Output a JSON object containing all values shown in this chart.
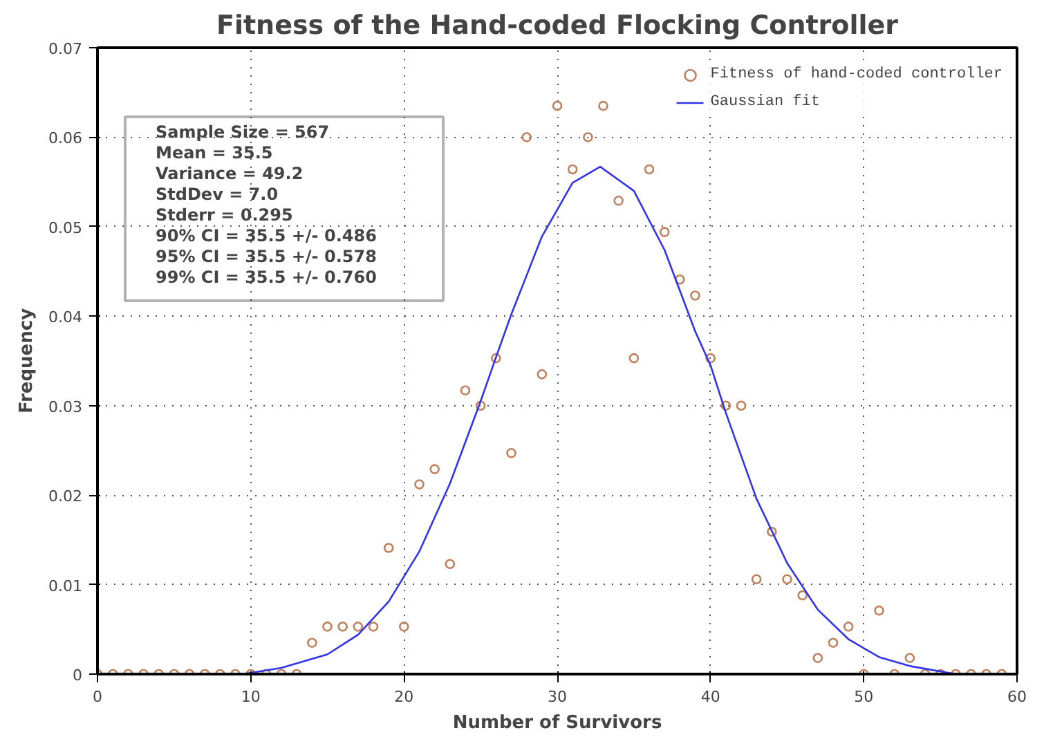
{
  "chart_data": {
    "type": "scatter",
    "title": "Fitness of the Hand-coded Flocking Controller",
    "xlabel": "Number of Survivors",
    "ylabel": "Frequency",
    "xlim": [
      0,
      60
    ],
    "xticks": [
      0,
      10,
      20,
      30,
      40,
      50,
      60
    ],
    "ylim": [
      0,
      0.07
    ],
    "yticks": [
      0,
      0.01,
      0.02,
      0.03,
      0.04,
      0.05,
      0.06,
      0.07
    ],
    "grid": true,
    "legend": "top right",
    "annotations": [
      "Sample Size = 567",
      "Mean = 35.5",
      "Variance = 49.2",
      "StdDev = 7.0",
      "Stderr = 0.295",
      "90% CI = 35.5 +/- 0.486",
      "95% CI = 35.5 +/- 0.578",
      "99% CI = 35.5 +/- 0.760"
    ],
    "series": [
      {
        "name": "Fitness of hand-coded controller",
        "marker": "circle",
        "color": "#c0825e",
        "x": [
          0,
          1,
          2,
          3,
          4,
          5,
          6,
          7,
          8,
          9,
          10,
          11,
          12,
          13,
          14,
          15,
          16,
          17,
          18,
          19,
          20,
          21,
          22,
          23,
          24,
          25,
          26,
          27,
          28,
          29,
          30,
          31,
          32,
          33,
          34,
          35,
          36,
          37,
          38,
          39,
          40,
          41,
          42,
          43,
          44,
          45,
          46,
          47,
          48,
          49,
          50,
          51,
          52,
          53,
          54,
          55,
          56,
          57,
          58,
          59
        ],
        "values": [
          0,
          0,
          0,
          0,
          0,
          0,
          0,
          0,
          0,
          0,
          0,
          0,
          0,
          0,
          0.0035,
          0.0053,
          0.0053,
          0.0053,
          0.0053,
          0.0141,
          0.0053,
          0.0212,
          0.0229,
          0.0123,
          0.0317,
          0.03,
          0.0353,
          0.0247,
          0.06,
          0.0335,
          0.0635,
          0.0564,
          0.06,
          0.0635,
          0.0529,
          0.0353,
          0.0564,
          0.0494,
          0.0441,
          0.0423,
          0.0353,
          0.03,
          0.03,
          0.0106,
          0.0159,
          0.0106,
          0.0088,
          0.0018,
          0.0035,
          0.0053,
          0,
          0.0071,
          0,
          0.0018,
          0,
          0,
          0,
          0,
          0,
          0
        ]
      },
      {
        "name": "Gaussian fit",
        "type": "line",
        "marker": "none",
        "color": "#3333ee",
        "x": [
          9.5,
          12,
          15,
          17,
          19,
          21,
          23,
          25,
          26,
          27,
          29,
          31,
          32.8,
          35,
          37,
          39,
          40,
          41,
          43,
          44,
          45,
          47,
          49,
          51,
          53,
          56
        ],
        "values": [
          0,
          0.0007,
          0.0022,
          0.0044,
          0.0081,
          0.0137,
          0.0213,
          0.0305,
          0.0354,
          0.0402,
          0.0489,
          0.0549,
          0.0567,
          0.054,
          0.0474,
          0.0383,
          0.0345,
          0.0292,
          0.0196,
          0.016,
          0.0124,
          0.0072,
          0.0039,
          0.0019,
          0.0009,
          0
        ]
      }
    ]
  }
}
